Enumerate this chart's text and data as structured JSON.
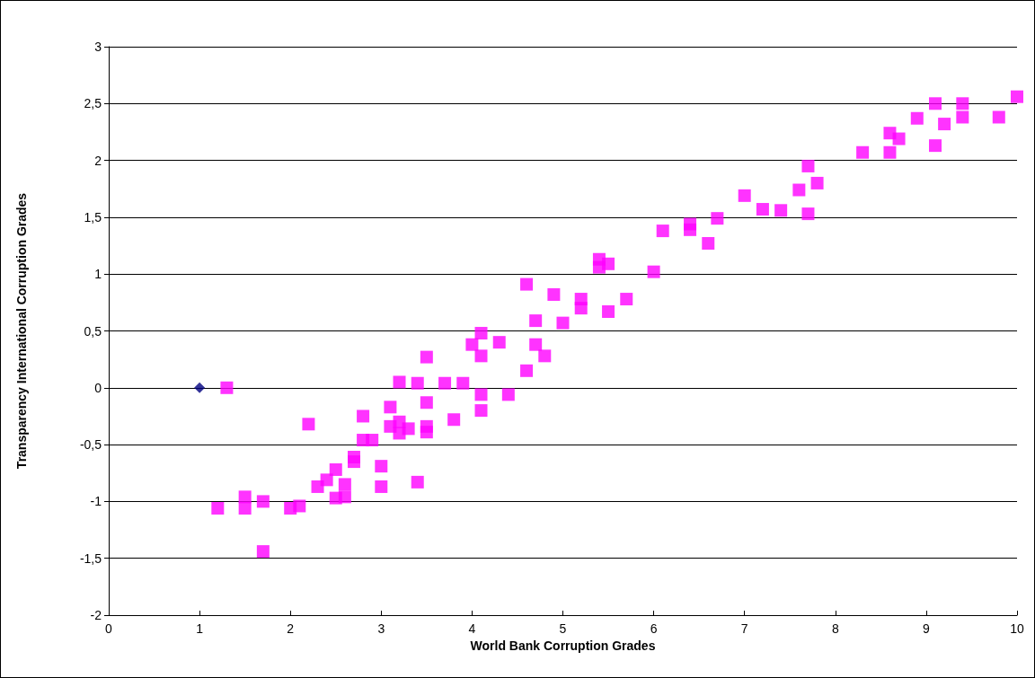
{
  "chart_data": {
    "type": "scatter",
    "xlabel": "World Bank Corruption Grades",
    "ylabel": "Transparency International Corruption Grades",
    "xlim": [
      0,
      10
    ],
    "xticks": [
      0,
      1,
      2,
      3,
      4,
      5,
      6,
      7,
      8,
      9,
      10
    ],
    "ylim": [
      -2,
      3
    ],
    "yticks": [
      -2,
      {
        "value": -1.5,
        "label": "-1,5"
      },
      -1,
      {
        "value": -0.5,
        "label": "-0,5"
      },
      0,
      {
        "value": 0.5,
        "label": "0,5"
      },
      1,
      {
        "value": 1.5,
        "label": "1,5"
      },
      2,
      {
        "value": 2.5,
        "label": "2,5"
      },
      3
    ],
    "grid": "y",
    "series": [
      {
        "color": "#000080",
        "marker": "diamond",
        "x": [
          1
        ],
        "values": [
          0
        ]
      },
      {
        "color": "#ff00ff",
        "marker": "square",
        "x": [
          1.3,
          1.2,
          1.5,
          1.5,
          1.7,
          1.7,
          2.0,
          2.1,
          2.2,
          2.3,
          2.4,
          2.5,
          2.5,
          2.6,
          2.6,
          2.7,
          2.7,
          2.8,
          2.8,
          2.9,
          3.0,
          3.0,
          3.1,
          3.1,
          3.2,
          3.2,
          3.2,
          3.3,
          3.4,
          3.4,
          3.5,
          3.5,
          3.5,
          3.5,
          3.7,
          3.8,
          3.9,
          4.0,
          4.1,
          4.1,
          4.1,
          4.1,
          4.3,
          4.4,
          4.6,
          4.6,
          4.7,
          4.7,
          4.8,
          4.9,
          5.0,
          5.2,
          5.2,
          5.4,
          5.4,
          5.5,
          5.5,
          5.7,
          6.0,
          6.1,
          6.4,
          6.4,
          6.6,
          6.7,
          7.0,
          7.2,
          7.4,
          7.6,
          7.7,
          7.7,
          7.8,
          8.3,
          8.6,
          8.6,
          8.7,
          8.9,
          9.1,
          9.1,
          9.2,
          9.4,
          9.4,
          9.8,
          10.0
        ],
        "values": [
          0,
          -1.06,
          -0.96,
          -1.06,
          -1.0,
          -1.44,
          -1.06,
          -1.04,
          -0.32,
          -0.87,
          -0.81,
          -0.72,
          -0.97,
          -0.85,
          -0.96,
          -0.65,
          -0.61,
          -0.25,
          -0.46,
          -0.46,
          -0.69,
          -0.87,
          -0.17,
          -0.34,
          0.05,
          -0.3,
          -0.4,
          -0.36,
          0.04,
          -0.83,
          0.27,
          -0.13,
          -0.34,
          -0.39,
          0.04,
          -0.28,
          0.04,
          0.38,
          0.48,
          0.28,
          -0.06,
          -0.2,
          0.4,
          -0.06,
          0.91,
          0.15,
          0.59,
          0.38,
          0.28,
          0.82,
          0.57,
          0.78,
          0.7,
          1.13,
          1.06,
          1.09,
          0.67,
          0.78,
          1.02,
          1.38,
          1.44,
          1.39,
          1.27,
          1.49,
          1.69,
          1.57,
          1.56,
          1.74,
          1.95,
          1.53,
          1.8,
          2.07,
          2.24,
          2.07,
          2.19,
          2.37,
          2.5,
          2.13,
          2.32,
          2.5,
          2.38,
          2.38,
          2.56
        ]
      }
    ]
  }
}
